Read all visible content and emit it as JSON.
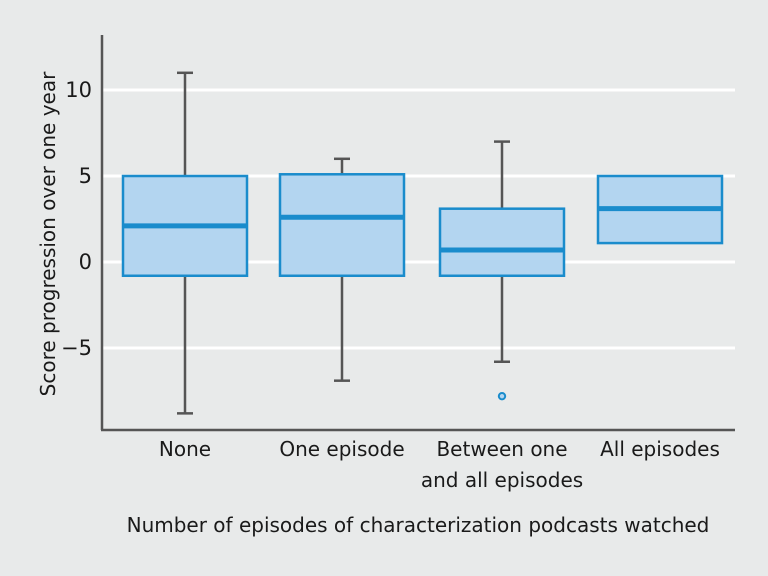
{
  "chart_data": {
    "type": "box",
    "xlabel": "Number of episodes of characterization podcasts watched",
    "ylabel": "Score progression over one year",
    "ylim": [
      -9.5,
      13
    ],
    "yticks": [
      {
        "value": 10,
        "label": "10"
      },
      {
        "value": 5,
        "label": "5"
      },
      {
        "value": 0,
        "label": "0"
      },
      {
        "value": -5,
        "label": "−5"
      }
    ],
    "grid": "horizontal",
    "categories": [
      {
        "label_lines": [
          "None"
        ],
        "whisker_low": -8.8,
        "q1": -0.8,
        "median": 2.1,
        "q3": 5.0,
        "whisker_high": 11.0,
        "outliers": []
      },
      {
        "label_lines": [
          "One episode"
        ],
        "whisker_low": -6.9,
        "q1": -0.8,
        "median": 2.6,
        "q3": 5.1,
        "whisker_high": 6.0,
        "outliers": []
      },
      {
        "label_lines": [
          "Between one",
          "and all episodes"
        ],
        "whisker_low": -5.8,
        "q1": -0.8,
        "median": 0.7,
        "q3": 3.1,
        "whisker_high": 7.0,
        "outliers": [
          -7.8
        ]
      },
      {
        "label_lines": [
          "All episodes"
        ],
        "whisker_low": 1.1,
        "q1": 1.1,
        "median": 3.1,
        "q3": 5.0,
        "whisker_high": 5.0,
        "outliers": []
      }
    ],
    "colors": {
      "box_fill": "#b3d5f0",
      "box_stroke": "#1a8ccc",
      "median": "#1a8ccc",
      "whisker": "#555555",
      "axis": "#555555",
      "grid": "#ffffff",
      "background": "#e8eaea"
    }
  }
}
